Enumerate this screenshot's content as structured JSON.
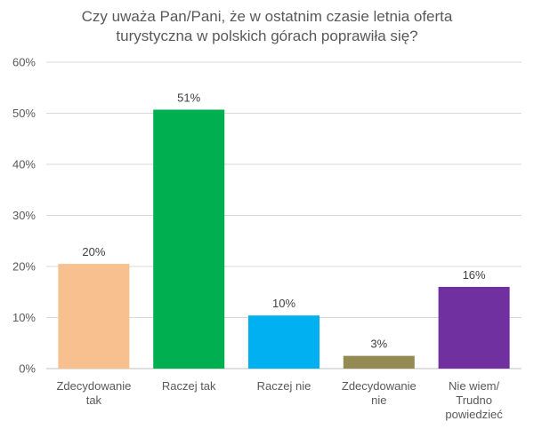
{
  "chart_data": {
    "type": "bar",
    "title_lines": [
      "Czy uważa Pan/Pani, że w ostatnim czasie letnia oferta",
      "turystyczna w polskich górach poprawiła się?"
    ],
    "categories": [
      [
        "Zdecydowanie",
        "tak"
      ],
      [
        "Raczej tak"
      ],
      [
        "Raczej nie"
      ],
      [
        "Zdecydowanie",
        "nie"
      ],
      [
        "Nie wiem/",
        "Trudno",
        "powiedzieć"
      ]
    ],
    "values": [
      20.5,
      50.7,
      10.4,
      2.5,
      16.0
    ],
    "data_labels": [
      "20%",
      "51%",
      "10%",
      "3%",
      "16%"
    ],
    "colors": [
      "#F8C08F",
      "#00B050",
      "#00B0F0",
      "#948A54",
      "#7030A0"
    ],
    "ylim": [
      0,
      60
    ],
    "yticks": [
      0,
      10,
      20,
      30,
      40,
      50,
      60
    ],
    "ytick_labels": [
      "0%",
      "10%",
      "20%",
      "30%",
      "40%",
      "50%",
      "60%"
    ],
    "grid": true,
    "gridline_color": "#D9D9D9",
    "xlabel": "",
    "ylabel": ""
  }
}
